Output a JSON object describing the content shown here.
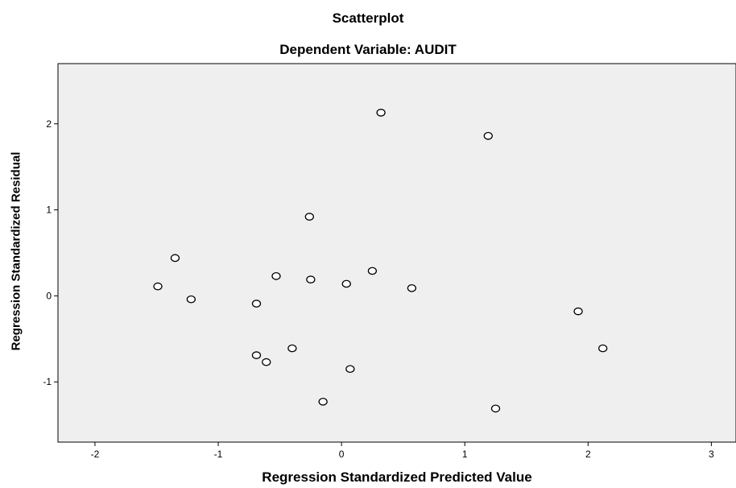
{
  "chart_data": {
    "type": "scatter",
    "title": "Scatterplot",
    "subtitle": "Dependent Variable: AUDIT",
    "xlabel": "Regression Standardized Predicted Value",
    "ylabel": "Regression Standardized Residual",
    "xlim": [
      -2.3,
      3.2
    ],
    "ylim": [
      -1.7,
      2.7
    ],
    "xticks": [
      -2,
      -1,
      0,
      1,
      2,
      3
    ],
    "yticks": [
      -1,
      0,
      1,
      2
    ],
    "grid": false,
    "colors": {
      "plot_background": "#efefef",
      "marker_stroke": "#000000",
      "marker_fill": "#ffffff"
    },
    "points": [
      {
        "x": 0.32,
        "y": 2.13
      },
      {
        "x": 1.19,
        "y": 1.86
      },
      {
        "x": -0.26,
        "y": 0.92
      },
      {
        "x": -1.35,
        "y": 0.44
      },
      {
        "x": -1.49,
        "y": 0.11
      },
      {
        "x": -1.22,
        "y": -0.04
      },
      {
        "x": -0.53,
        "y": 0.23
      },
      {
        "x": -0.25,
        "y": 0.19
      },
      {
        "x": 0.04,
        "y": 0.14
      },
      {
        "x": 0.25,
        "y": 0.29
      },
      {
        "x": 0.57,
        "y": 0.09
      },
      {
        "x": -0.69,
        "y": -0.09
      },
      {
        "x": -0.4,
        "y": -0.61
      },
      {
        "x": -0.69,
        "y": -0.69
      },
      {
        "x": -0.61,
        "y": -0.77
      },
      {
        "x": 0.07,
        "y": -0.85
      },
      {
        "x": -0.15,
        "y": -1.23
      },
      {
        "x": 1.25,
        "y": -1.31
      },
      {
        "x": 1.92,
        "y": -0.18
      },
      {
        "x": 2.12,
        "y": -0.61
      }
    ]
  }
}
